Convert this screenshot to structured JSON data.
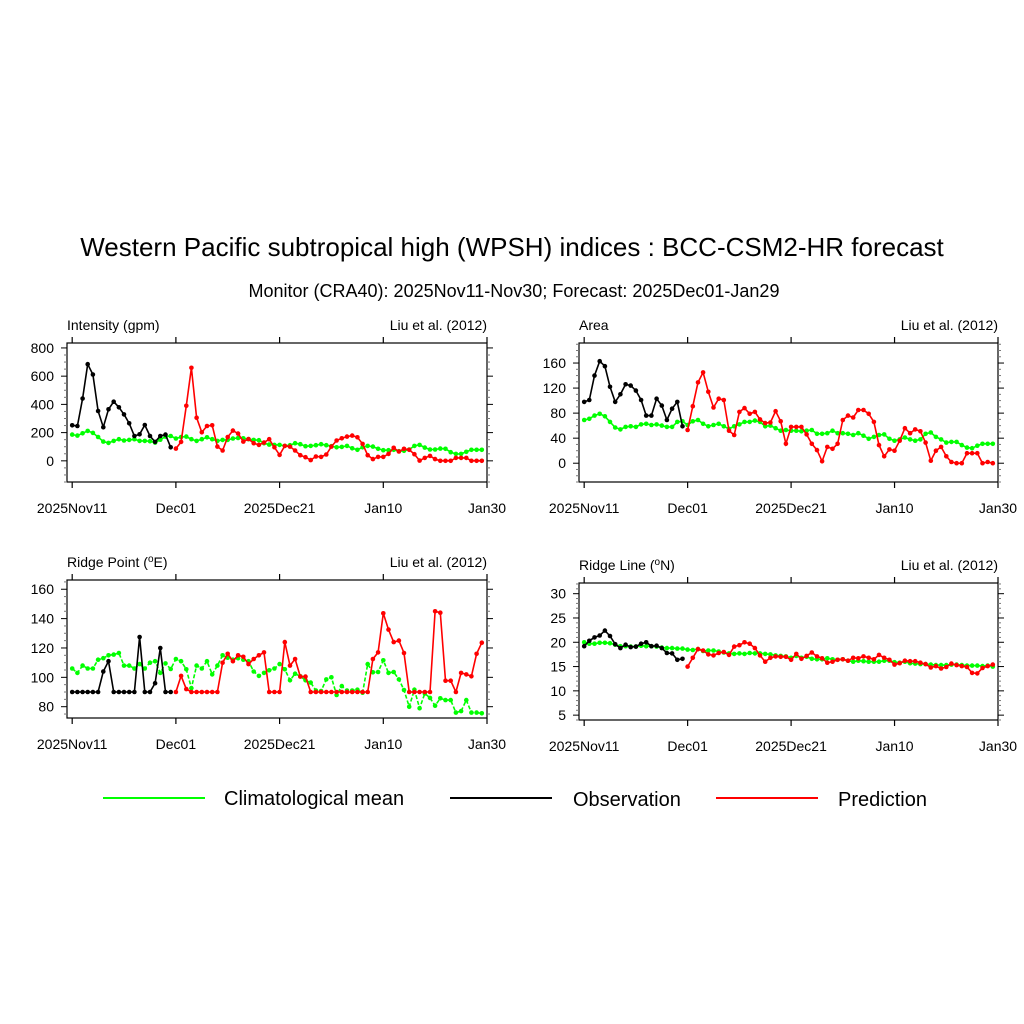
{
  "title": "Western Pacific subtropical high (WPSH) indices : BCC-CSM2-HR forecast",
  "subtitle": "Monitor (CRA40): 2025Nov11-Nov30; Forecast: 2025Dec01-Jan29",
  "legend": [
    {
      "label": "Climatological mean",
      "color": "#00ff00"
    },
    {
      "label": "Observation",
      "color": "#000000"
    },
    {
      "label": "Prediction",
      "color": "#ff0000"
    }
  ],
  "chart_data": [
    {
      "type": "line",
      "title": "Intensity (gpm)",
      "reference": "Liu et al. (2012)",
      "x_start": "2025-11-11",
      "xlim": [
        -1,
        80
      ],
      "xticks": [
        {
          "day": 0,
          "label": "2025Nov11"
        },
        {
          "day": 20,
          "label": "Dec01"
        },
        {
          "day": 40,
          "label": "2025Dec21"
        },
        {
          "day": 60,
          "label": "Jan10"
        },
        {
          "day": 80,
          "label": "Jan30"
        }
      ],
      "ylim": [
        -150,
        835
      ],
      "yticks": [
        0,
        200,
        400,
        600,
        800
      ],
      "yminor": 50,
      "series": [
        {
          "name": "Observation",
          "color": "#000000",
          "start_day": 0,
          "values": [
            252,
            247,
            442,
            685,
            612,
            353,
            238,
            365,
            419,
            379,
            329,
            266,
            176,
            188,
            254,
            176,
            134,
            176,
            186,
            96
          ]
        },
        {
          "name": "Prediction",
          "color": "#ff0000",
          "start_day": 20,
          "values": [
            87,
            134,
            390,
            659,
            306,
            202,
            247,
            252,
            101,
            73,
            169,
            214,
            193,
            136,
            155,
            125,
            113,
            129,
            153,
            96,
            42,
            106,
            101,
            73,
            40,
            26,
            5,
            31,
            28,
            45,
            101,
            144,
            160,
            172,
            179,
            167,
            120,
            40,
            12,
            28,
            28,
            49,
            92,
            66,
            85,
            78,
            47,
            2,
            21,
            35,
            12,
            0,
            0,
            0,
            21,
            21,
            21,
            0,
            0,
            0
          ]
        },
        {
          "name": "Climatological mean",
          "color": "#00ff00",
          "start_day": 0,
          "dashed": false,
          "values": [
            186,
            179,
            195,
            212,
            198,
            169,
            136,
            127,
            141,
            153,
            144,
            148,
            153,
            141,
            141,
            139,
            129,
            150,
            172,
            176,
            158,
            169,
            172,
            153,
            141,
            153,
            167,
            153,
            141,
            148,
            148,
            158,
            162,
            160,
            153,
            148,
            146,
            125,
            115,
            113,
            113,
            106,
            111,
            125,
            118,
            104,
            106,
            111,
            118,
            111,
            104,
            96,
            99,
            106,
            89,
            78,
            96,
            106,
            101,
            85,
            75,
            75,
            78,
            68,
            71,
            80,
            106,
            113,
            94,
            80,
            80,
            87,
            85,
            61,
            49,
            49,
            64,
            78,
            78,
            78
          ]
        }
      ]
    },
    {
      "type": "line",
      "title": "Area",
      "reference": "Liu et al. (2012)",
      "x_start": "2025-11-11",
      "xlim": [
        -1,
        80
      ],
      "xticks": [
        {
          "day": 0,
          "label": "2025Nov11"
        },
        {
          "day": 20,
          "label": "Dec01"
        },
        {
          "day": 40,
          "label": "2025Dec21"
        },
        {
          "day": 60,
          "label": "Jan10"
        },
        {
          "day": 80,
          "label": "Jan30"
        }
      ],
      "ylim": [
        -30,
        192
      ],
      "yticks": [
        0,
        40,
        80,
        120,
        160
      ],
      "yminor": 10,
      "series": [
        {
          "name": "Observation",
          "color": "#000000",
          "start_day": 0,
          "values": [
            98,
            101,
            140,
            163,
            155,
            122,
            98,
            110,
            126,
            124,
            116,
            101,
            76,
            76,
            103,
            92,
            69,
            87,
            98,
            59
          ]
        },
        {
          "name": "Prediction",
          "color": "#ff0000",
          "start_day": 20,
          "values": [
            53,
            91,
            129,
            145,
            114,
            89,
            103,
            101,
            52,
            45,
            82,
            88,
            79,
            82,
            70,
            64,
            65,
            83,
            67,
            31,
            58,
            58,
            58,
            46,
            31,
            21,
            3,
            26,
            23,
            31,
            69,
            76,
            73,
            85,
            85,
            79,
            66,
            29,
            11,
            22,
            20,
            36,
            56,
            48,
            54,
            51,
            33,
            4,
            20,
            26,
            11,
            2,
            0,
            0,
            16,
            16,
            16,
            0,
            2,
            0
          ]
        },
        {
          "name": "Climatological mean",
          "color": "#00ff00",
          "start_day": 0,
          "dashed": false,
          "values": [
            69,
            71,
            76,
            79,
            75,
            66,
            57,
            54,
            58,
            59,
            58,
            62,
            63,
            61,
            62,
            60,
            58,
            58,
            66,
            67,
            61,
            67,
            69,
            63,
            59,
            61,
            63,
            59,
            55,
            59,
            62,
            66,
            66,
            68,
            66,
            59,
            60,
            56,
            52,
            53,
            52,
            52,
            51,
            52,
            53,
            47,
            47,
            48,
            52,
            48,
            48,
            47,
            45,
            48,
            44,
            39,
            42,
            45,
            46,
            39,
            36,
            38,
            41,
            38,
            36,
            38,
            47,
            49,
            42,
            38,
            33,
            34,
            34,
            29,
            25,
            24,
            28,
            31,
            31,
            31
          ]
        }
      ]
    },
    {
      "type": "line",
      "title": "Ridge Point (",
      "title_sup": "o",
      "title_end": "E)",
      "reference": "Liu et al. (2012)",
      "x_start": "2025-11-11",
      "xlim": [
        -1,
        80
      ],
      "xticks": [
        {
          "day": 0,
          "label": "2025Nov11"
        },
        {
          "day": 20,
          "label": "Dec01"
        },
        {
          "day": 40,
          "label": "2025Dec21"
        },
        {
          "day": 60,
          "label": "Jan10"
        },
        {
          "day": 80,
          "label": "Jan30"
        }
      ],
      "ylim": [
        72.3,
        166.3
      ],
      "yticks": [
        80,
        100,
        120,
        140,
        160
      ],
      "yminor": 5,
      "series": [
        {
          "name": "Observation",
          "color": "#000000",
          "start_day": 0,
          "values": [
            90,
            90,
            90,
            90,
            90,
            90,
            104,
            111,
            90,
            90,
            90,
            90,
            90,
            127.5,
            90,
            90,
            96,
            120,
            90,
            90
          ]
        },
        {
          "name": "Prediction",
          "color": "#ff0000",
          "start_day": 20,
          "values": [
            90,
            101,
            92,
            90,
            90,
            90,
            90,
            90,
            90,
            110,
            116,
            111,
            115,
            114,
            109,
            112.5,
            115,
            117,
            90,
            90,
            90,
            124,
            108,
            112.5,
            100.5,
            100.5,
            90,
            90,
            90,
            90,
            90,
            90,
            90,
            90,
            90,
            90,
            90,
            90,
            112.5,
            117,
            143.6,
            132.5,
            124,
            125,
            116.6,
            90,
            90,
            90,
            90,
            90,
            145,
            144,
            97.7,
            97.7,
            90,
            103,
            102,
            100.7,
            116,
            123.6
          ]
        },
        {
          "name": "Climatological mean",
          "color": "#00ff00",
          "start_day": 0,
          "dashed": true,
          "values": [
            106,
            103,
            108,
            106,
            106,
            112,
            113,
            115,
            115.5,
            116.6,
            108,
            108,
            106,
            109,
            106,
            110,
            111,
            103,
            109.5,
            105.7,
            112.5,
            111,
            105.5,
            92.7,
            108,
            106,
            111,
            102,
            108,
            115,
            113.4,
            112,
            113,
            112,
            111,
            104,
            101,
            103,
            104.8,
            106,
            109,
            105.5,
            98,
            102.5,
            100.7,
            98,
            96.4,
            91,
            90.7,
            98.6,
            100,
            88,
            94,
            91,
            91,
            91.6,
            89.5,
            109,
            103.4,
            103.6,
            111.6,
            103,
            103.6,
            98.6,
            91.4,
            80,
            91.6,
            79,
            89,
            86,
            80.7,
            85.7,
            84.5,
            84.5,
            76,
            77,
            84.5,
            76,
            76,
            75.5
          ]
        }
      ]
    },
    {
      "type": "line",
      "title": "Ridge Line (",
      "title_sup": "o",
      "title_end": "N)",
      "reference": "Liu et al. (2012)",
      "x_start": "2025-11-11",
      "xlim": [
        -1,
        80
      ],
      "xticks": [
        {
          "day": 0,
          "label": "2025Nov11"
        },
        {
          "day": 20,
          "label": "Dec01"
        },
        {
          "day": 40,
          "label": "2025Dec21"
        },
        {
          "day": 60,
          "label": "Jan10"
        },
        {
          "day": 80,
          "label": "Jan30"
        }
      ],
      "ylim": [
        4,
        32.2
      ],
      "yticks": [
        5,
        10,
        15,
        20,
        25,
        30
      ],
      "yminor": 1,
      "series": [
        {
          "name": "Observation",
          "color": "#000000",
          "start_day": 0,
          "values": [
            19.2,
            20.3,
            21,
            21.4,
            22.4,
            21.3,
            19.6,
            18.8,
            19.5,
            19,
            19.1,
            19.7,
            20,
            19.2,
            19.3,
            18.8,
            17.8,
            17.7,
            16.4,
            16.6
          ]
        },
        {
          "name": "Prediction",
          "color": "#ff0000",
          "start_day": 20,
          "values": [
            15,
            16.8,
            18.6,
            18.3,
            17.5,
            17.3,
            17.8,
            18,
            17.4,
            19.1,
            19.4,
            20,
            19.7,
            18.8,
            17.3,
            16,
            16.8,
            17.1,
            17,
            17,
            16.4,
            17.6,
            16.6,
            17.2,
            17.9,
            17.1,
            16.7,
            15.8,
            16,
            16.4,
            16.5,
            16.2,
            16.8,
            16.7,
            17.1,
            16.8,
            16.5,
            17.4,
            16.8,
            16.4,
            15.4,
            15.7,
            16.2,
            16.1,
            16.1,
            15.8,
            15.5,
            14.8,
            15.1,
            14.6,
            14.9,
            15.6,
            15.3,
            15.1,
            14.9,
            13.7,
            13.6,
            14.7,
            15.1,
            15.4
          ]
        },
        {
          "name": "Climatological mean",
          "color": "#00ff00",
          "start_day": 0,
          "dashed": false,
          "values": [
            20,
            19.7,
            19.7,
            19.9,
            19.9,
            19.8,
            19.5,
            19.2,
            19.2,
            19.1,
            19.1,
            19.3,
            19.2,
            19.2,
            19.1,
            18.9,
            18.8,
            18.8,
            18.7,
            18.7,
            18.5,
            18.4,
            18.6,
            18.2,
            18.3,
            18.3,
            18.1,
            17.9,
            17.7,
            17.6,
            17.7,
            17.6,
            17.8,
            17.7,
            17.7,
            17.6,
            17.5,
            17.3,
            17.2,
            17.1,
            16.8,
            17.2,
            16.8,
            17,
            16.6,
            16.5,
            16.5,
            16.7,
            16.5,
            16.4,
            16.5,
            16.2,
            16,
            16.2,
            16.1,
            16,
            16,
            16,
            16.2,
            16.2,
            15.9,
            15.8,
            16,
            15.7,
            15.6,
            15.5,
            15.5,
            15.4,
            15.3,
            15.3,
            15.3,
            15.4,
            15.4,
            15.3,
            15.2,
            15.2,
            15.2,
            15.1,
            15.2,
            15
          ]
        }
      ]
    }
  ]
}
